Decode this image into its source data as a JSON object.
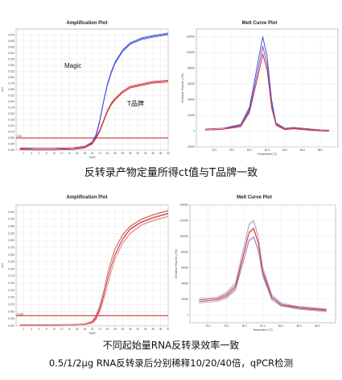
{
  "charts": {
    "amp_top": {
      "title": "Amplification Plot",
      "type": "line",
      "xlabel": "Cycle",
      "ylabel": "ΔRn",
      "xlim": [
        0,
        40
      ],
      "ylim": [
        0,
        0.5
      ],
      "yticks": [
        "0.000",
        "0.025",
        "0.050",
        "0.075",
        "0.100",
        "0.125",
        "0.150",
        "0.175",
        "0.200",
        "0.225",
        "0.250",
        "0.275",
        "0.300",
        "0.325",
        "0.350",
        "0.375",
        "0.400",
        "0.425",
        "0.450",
        "0.475"
      ],
      "xticks": [
        "2",
        "4",
        "6",
        "8",
        "10",
        "12",
        "14",
        "16",
        "18",
        "20",
        "22",
        "24",
        "26",
        "28",
        "30",
        "32",
        "34",
        "36",
        "38",
        "40"
      ],
      "threshold": 0.05,
      "threshold_label": "0.05",
      "annotations": {
        "magic": "Magic",
        "tbrand": "T品牌"
      },
      "colors": {
        "series_a": "#3d4fd6",
        "series_b": "#d0303a",
        "threshold": "#c21a1a",
        "baseline": "#2aa63a"
      }
    },
    "melt_top": {
      "title": "Melt Curve Plot",
      "type": "line",
      "xlabel": "Temperature (°C)",
      "ylabel": "Derivative Reporter (-Rn')",
      "xlim": [
        74,
        90
      ],
      "ylim": [
        -20000,
        130000
      ],
      "yticks": [
        "-20000",
        "0",
        "20000",
        "40000",
        "60000",
        "80000",
        "100000",
        "120000"
      ],
      "xticks": [
        "76.0",
        "78.0",
        "80.0",
        "82.0",
        "84.0",
        "86.0",
        "88.0"
      ]
    },
    "amp_bottom": {
      "title": "Amplification Plot",
      "type": "line",
      "xlabel": "Cycle",
      "ylabel": "ΔRn",
      "xlim": [
        0,
        40
      ],
      "ylim": [
        0,
        0.425
      ],
      "yticks": [
        "0.000",
        "0.025",
        "0.050",
        "0.075",
        "0.100",
        "0.125",
        "0.150",
        "0.175",
        "0.200",
        "0.225",
        "0.250",
        "0.275",
        "0.300",
        "0.325",
        "0.350",
        "0.375",
        "0.400"
      ],
      "xticks": [
        "2",
        "4",
        "6",
        "8",
        "10",
        "12",
        "14",
        "16",
        "18",
        "20",
        "22",
        "24",
        "26",
        "28",
        "30",
        "32",
        "34",
        "36",
        "38",
        "40"
      ],
      "threshold": 0.036,
      "threshold_label": "0.036"
    },
    "melt_bottom": {
      "title": "Melt Curve Plot",
      "type": "line",
      "xlabel": "Temperature (°C)",
      "ylabel": "Derivative Reporter (-Rn')",
      "xlim": [
        74,
        90
      ],
      "ylim": [
        -10000,
        140000
      ],
      "yticks": [
        "0",
        "20000",
        "40000",
        "60000",
        "80000",
        "100000",
        "120000",
        "140000"
      ],
      "xticks": [
        "76.0",
        "78.0",
        "80.0",
        "82.0",
        "84.0",
        "86.0",
        "88.0"
      ]
    }
  },
  "chart_data": [
    {
      "type": "line",
      "title": "Amplification Plot",
      "xlabel": "Cycle",
      "ylabel": "ΔRn",
      "xlim": [
        0,
        40
      ],
      "ylim": [
        0,
        0.5
      ],
      "threshold": 0.05,
      "series": [
        {
          "x": [
            1,
            5,
            10,
            15,
            18,
            20,
            21,
            22,
            23,
            24,
            25,
            26,
            28,
            30,
            33,
            36,
            40
          ],
          "values": [
            0.005,
            0.004,
            0.004,
            0.006,
            0.012,
            0.03,
            0.06,
            0.12,
            0.2,
            0.27,
            0.32,
            0.36,
            0.41,
            0.44,
            0.46,
            0.47,
            0.48
          ]
        },
        {
          "x": [
            1,
            5,
            10,
            15,
            18,
            20,
            21,
            22,
            23,
            24,
            25,
            26,
            28,
            30,
            33,
            36,
            40
          ],
          "values": [
            0.005,
            0.004,
            0.004,
            0.006,
            0.012,
            0.028,
            0.05,
            0.08,
            0.12,
            0.16,
            0.19,
            0.21,
            0.24,
            0.26,
            0.27,
            0.28,
            0.285
          ]
        }
      ]
    },
    {
      "type": "line",
      "title": "Melt Curve Plot",
      "xlabel": "Temperature (°C)",
      "ylabel": "Derivative Reporter (-Rn')",
      "xlim": [
        74,
        90
      ],
      "ylim": [
        -20000,
        130000
      ],
      "series": [
        {
          "x": [
            75,
            77,
            79,
            80,
            81,
            81.5,
            82,
            82.5,
            83,
            84,
            85,
            86,
            87,
            88,
            89
          ],
          "values": [
            2000,
            3000,
            8000,
            30000,
            90000,
            120000,
            95000,
            40000,
            10000,
            3000,
            4000,
            3000,
            2000,
            1000,
            500
          ]
        },
        {
          "x": [
            75,
            77,
            79,
            80,
            81,
            81.5,
            82,
            82.5,
            83,
            84,
            85,
            86,
            87,
            88,
            89
          ],
          "values": [
            2000,
            3000,
            7000,
            27000,
            80000,
            108000,
            85000,
            35000,
            9000,
            3000,
            4000,
            3000,
            2000,
            1000,
            500
          ]
        },
        {
          "x": [
            75,
            77,
            79,
            80,
            81,
            81.5,
            82,
            82.5,
            83,
            84,
            85,
            86,
            87,
            88,
            89
          ],
          "values": [
            2000,
            3000,
            6000,
            24000,
            72000,
            98000,
            78000,
            30000,
            8000,
            2500,
            3500,
            2500,
            1500,
            800,
            400
          ]
        }
      ]
    },
    {
      "type": "line",
      "title": "Amplification Plot",
      "xlabel": "Cycle",
      "ylabel": "ΔRn",
      "xlim": [
        0,
        40
      ],
      "ylim": [
        0,
        0.425
      ],
      "threshold": 0.036,
      "series": [
        {
          "x": [
            1,
            5,
            10,
            15,
            18,
            20,
            21,
            22,
            23,
            24,
            25,
            26,
            28,
            30,
            33,
            36,
            40
          ],
          "values": [
            0.003,
            0.003,
            0.003,
            0.004,
            0.006,
            0.015,
            0.035,
            0.07,
            0.12,
            0.18,
            0.23,
            0.27,
            0.32,
            0.35,
            0.375,
            0.39,
            0.405
          ]
        },
        {
          "x": [
            1,
            5,
            10,
            15,
            18,
            20,
            21,
            22,
            23,
            24,
            25,
            26,
            28,
            30,
            33,
            36,
            40
          ],
          "values": [
            0.003,
            0.003,
            0.003,
            0.004,
            0.006,
            0.012,
            0.028,
            0.06,
            0.105,
            0.16,
            0.21,
            0.25,
            0.305,
            0.34,
            0.365,
            0.38,
            0.395
          ]
        },
        {
          "x": [
            1,
            5,
            10,
            15,
            18,
            20,
            21,
            22,
            23,
            24,
            25,
            26,
            28,
            30,
            33,
            36,
            40
          ],
          "values": [
            0.003,
            0.003,
            0.003,
            0.004,
            0.005,
            0.01,
            0.022,
            0.05,
            0.09,
            0.14,
            0.19,
            0.235,
            0.29,
            0.325,
            0.355,
            0.37,
            0.385
          ]
        }
      ]
    },
    {
      "type": "line",
      "title": "Melt Curve Plot",
      "xlabel": "Temperature (°C)",
      "ylabel": "Derivative Reporter (-Rn')",
      "xlim": [
        74,
        90
      ],
      "ylim": [
        -10000,
        140000
      ],
      "series": [
        {
          "x": [
            75,
            77,
            78,
            79,
            80,
            80.5,
            81,
            81.5,
            82,
            83,
            84,
            85,
            86,
            87,
            88,
            89
          ],
          "values": [
            20000,
            22000,
            28000,
            40000,
            90000,
            115000,
            120000,
            100000,
            60000,
            25000,
            15000,
            12000,
            10000,
            9000,
            8000,
            7000
          ]
        },
        {
          "x": [
            75,
            77,
            78,
            79,
            80,
            80.5,
            81,
            81.5,
            82,
            83,
            84,
            85,
            86,
            87,
            88,
            89
          ],
          "values": [
            18000,
            20000,
            25000,
            36000,
            82000,
            105000,
            110000,
            92000,
            55000,
            22000,
            13000,
            11000,
            9000,
            8000,
            7000,
            6000
          ]
        },
        {
          "x": [
            75,
            77,
            78,
            79,
            80,
            80.5,
            81,
            81.5,
            82,
            83,
            84,
            85,
            86,
            87,
            88,
            89
          ],
          "values": [
            16000,
            18000,
            22000,
            32000,
            74000,
            95000,
            99000,
            83000,
            50000,
            20000,
            12000,
            10000,
            8000,
            7000,
            6000,
            5000
          ]
        }
      ]
    }
  ],
  "captions": {
    "top": "反转录产物定量所得ct值与T品牌一致",
    "bottom_line1": "不同起始量RNA反转录效率一致",
    "bottom_line2": "0.5/1/2μg RNA反转录后分别稀释10/20/40倍，qPCR检测"
  }
}
